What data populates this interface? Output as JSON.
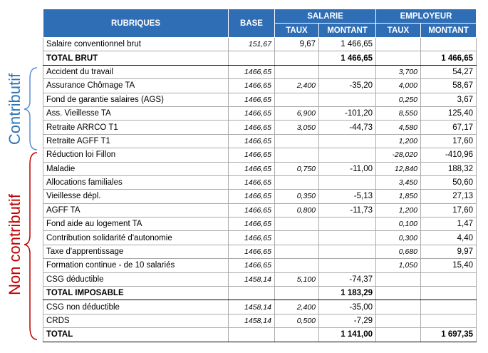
{
  "header": {
    "rubriques": "RUBRIQUES",
    "base": "BASE",
    "salarie": "SALARIE",
    "employeur": "EMPLOYEUR",
    "taux": "TAUX",
    "montant": "MONTANT"
  },
  "groups": {
    "contributif": "Contributif",
    "non_contributif": "Non contributif"
  },
  "rows": [
    {
      "label": "Salaire conventionnel brut",
      "base": "151,67",
      "salarie_taux": "9,67",
      "salarie_montant": "1 466,65"
    },
    {
      "label": "TOTAL BRUT",
      "total": true,
      "salarie_montant": "1 466,65",
      "employeur_montant": "1 466,65"
    },
    {
      "label": "Accident du travail",
      "base": "1466,65",
      "employeur_taux": "3,700",
      "employeur_montant": "54,27"
    },
    {
      "label": "Assurance Chômage TA",
      "base": "1466,65",
      "salarie_taux": "2,400",
      "salarie_montant": "-35,20",
      "employeur_taux": "4,000",
      "employeur_montant": "58,67"
    },
    {
      "label": "Fond de garantie salaires (AGS)",
      "base": "1466,65",
      "employeur_taux": "0,250",
      "employeur_montant": "3,67"
    },
    {
      "label": "Ass. Vieillesse TA",
      "base": "1466,65",
      "salarie_taux": "6,900",
      "salarie_montant": "-101,20",
      "employeur_taux": "8,550",
      "employeur_montant": "125,40"
    },
    {
      "label": "Retraite ARRCO T1",
      "base": "1466,65",
      "salarie_taux": "3,050",
      "salarie_montant": "-44,73",
      "employeur_taux": "4,580",
      "employeur_montant": "67,17"
    },
    {
      "label": "Retraite AGFF T1",
      "base": "1466,65",
      "employeur_taux": "1,200",
      "employeur_montant": "17,60"
    },
    {
      "label": "Réduction loi Fillon",
      "base": "1466,65",
      "employeur_taux": "-28,020",
      "employeur_montant": "-410,96"
    },
    {
      "label": "Maladie",
      "base": "1466,65",
      "salarie_taux": "0,750",
      "salarie_montant": "-11,00",
      "employeur_taux": "12,840",
      "employeur_montant": "188,32"
    },
    {
      "label": "Allocations familiales",
      "base": "1466,65",
      "employeur_taux": "3,450",
      "employeur_montant": "50,60"
    },
    {
      "label": "Vieillesse dépl.",
      "base": "1466,65",
      "salarie_taux": "0,350",
      "salarie_montant": "-5,13",
      "employeur_taux": "1,850",
      "employeur_montant": "27,13"
    },
    {
      "label": "AGFF TA",
      "base": "1466,65",
      "salarie_taux": "0,800",
      "salarie_montant": "-11,73",
      "employeur_taux": "1,200",
      "employeur_montant": "17,60"
    },
    {
      "label": "Fond aide au logement TA",
      "base": "1466,65",
      "employeur_taux": "0,100",
      "employeur_montant": "1,47"
    },
    {
      "label": "Contribution solidarité d'autonomie",
      "base": "1466,65",
      "employeur_taux": "0,300",
      "employeur_montant": "4,40"
    },
    {
      "label": "Taxe d'apprentissage",
      "base": "1466,65",
      "employeur_taux": "0,680",
      "employeur_montant": "9,97"
    },
    {
      "label": "Formation continue - de 10 salariés",
      "base": "1466,65",
      "employeur_taux": "1,050",
      "employeur_montant": "15,40"
    },
    {
      "label": "CSG déductible",
      "base": "1458,14",
      "salarie_taux": "5,100",
      "salarie_montant": "-74,37"
    },
    {
      "label": "TOTAL IMPOSABLE",
      "total": true,
      "salarie_montant": "1 183,29"
    },
    {
      "label": "CSG non déductible",
      "base": "1458,14",
      "salarie_taux": "2,400",
      "salarie_montant": "-35,00"
    },
    {
      "label": "CRDS",
      "base": "1458,14",
      "salarie_taux": "0,500",
      "salarie_montant": "-7,29"
    },
    {
      "label": "TOTAL",
      "total": true,
      "salarie_montant": "1 141,00",
      "employeur_montant": "1 697,35"
    }
  ]
}
